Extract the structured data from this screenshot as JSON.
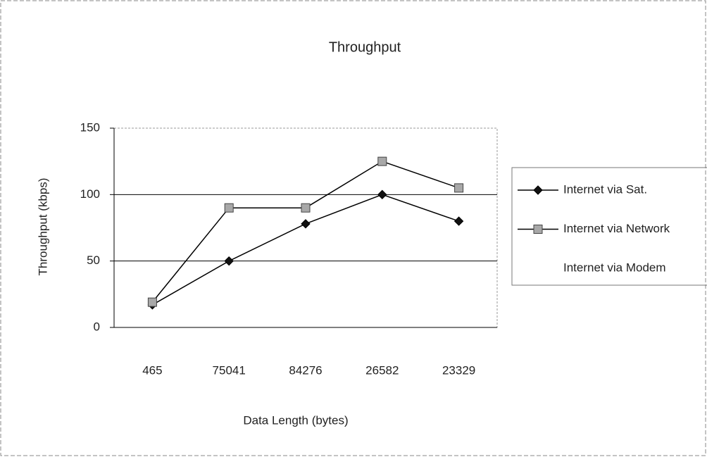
{
  "chart_data": {
    "type": "line",
    "title": "Throughput",
    "x_label": "Data Length (bytes)",
    "y_label": "Throughput (kbps)",
    "categories": [
      "465",
      "75041",
      "84276",
      "26582",
      "23329"
    ],
    "series": [
      {
        "name": "Internet via Sat.",
        "color": "#000000",
        "marker": "diamond",
        "marker_color": "#111111",
        "values": [
          17,
          50,
          78,
          100,
          80
        ]
      },
      {
        "name": "Internet via Network",
        "color": "#000000",
        "marker": "square",
        "marker_color": "#a8a8a8",
        "values": [
          19,
          90,
          90,
          125,
          105
        ]
      },
      {
        "name": "Internet via Modem",
        "values": [
          null,
          null,
          null,
          null,
          null
        ]
      }
    ],
    "ylim": [
      0,
      150
    ],
    "yticks": [
      0,
      50,
      100,
      150
    ],
    "grid": true,
    "legend": "right"
  }
}
